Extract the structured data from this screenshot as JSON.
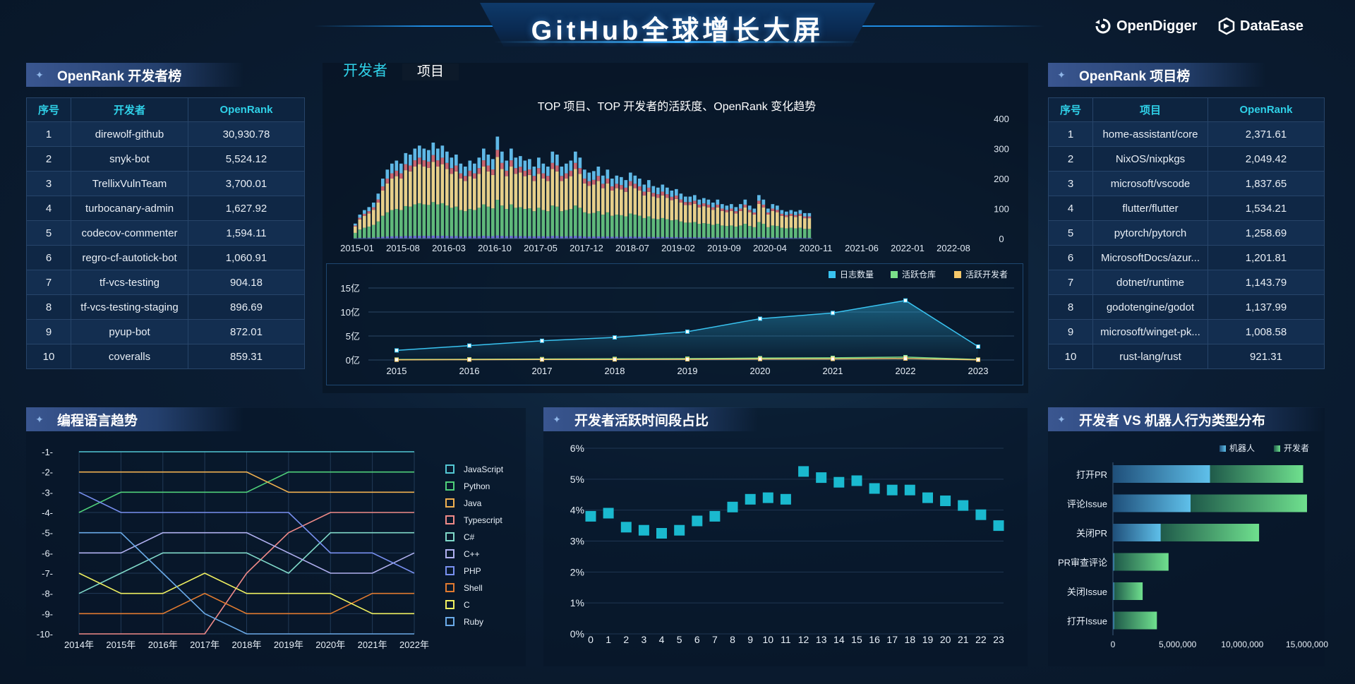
{
  "header": {
    "title": "GitHub全球增长大屏"
  },
  "logos": {
    "opendigger": "OpenDigger",
    "dataease": "DataEase"
  },
  "dev_rank": {
    "title": "OpenRank 开发者榜",
    "columns": [
      "序号",
      "开发者",
      "OpenRank"
    ],
    "rows": [
      [
        "1",
        "direwolf-github",
        "30,930.78"
      ],
      [
        "2",
        "snyk-bot",
        "5,524.12"
      ],
      [
        "3",
        "TrellixVulnTeam",
        "3,700.01"
      ],
      [
        "4",
        "turbocanary-admin",
        "1,627.92"
      ],
      [
        "5",
        "codecov-commenter",
        "1,594.11"
      ],
      [
        "6",
        "regro-cf-autotick-bot",
        "1,060.91"
      ],
      [
        "7",
        "tf-vcs-testing",
        "904.18"
      ],
      [
        "8",
        "tf-vcs-testing-staging",
        "896.69"
      ],
      [
        "9",
        "pyup-bot",
        "872.01"
      ],
      [
        "10",
        "coveralls",
        "859.31"
      ]
    ]
  },
  "repo_rank": {
    "title": "OpenRank 项目榜",
    "columns": [
      "序号",
      "项目",
      "OpenRank"
    ],
    "rows": [
      [
        "1",
        "home-assistant/core",
        "2,371.61"
      ],
      [
        "2",
        "NixOS/nixpkgs",
        "2,049.42"
      ],
      [
        "3",
        "microsoft/vscode",
        "1,837.65"
      ],
      [
        "4",
        "flutter/flutter",
        "1,534.21"
      ],
      [
        "5",
        "pytorch/pytorch",
        "1,258.69"
      ],
      [
        "6",
        "MicrosoftDocs/azur...",
        "1,201.81"
      ],
      [
        "7",
        "dotnet/runtime",
        "1,143.79"
      ],
      [
        "8",
        "godotengine/godot",
        "1,137.99"
      ],
      [
        "9",
        "microsoft/winget-pk...",
        "1,008.58"
      ],
      [
        "10",
        "rust-lang/rust",
        "921.31"
      ]
    ]
  },
  "center_tabs": {
    "active": "开发者",
    "inactive": "项目"
  },
  "colors": {
    "cyan": "#2fd1e8",
    "bar_blue": "#5fb8e6",
    "bar_red": "#c8646e",
    "bar_yellow": "#e6cf8a",
    "bar_green": "#5fb87a",
    "bar_purple": "#6c6cd4",
    "line_cyan": "#39c3f0",
    "legend_green": "#7be08a",
    "legend_yellow": "#f5c86a"
  },
  "chart_data": [
    {
      "type": "bar",
      "title": "TOP 项目、TOP 开发者的活跃度、OpenRank 变化趋势",
      "x_tick_labels": [
        "2015-01",
        "2015-08",
        "2016-03",
        "2016-10",
        "2017-05",
        "2017-12",
        "2018-07",
        "2019-02",
        "2019-09",
        "2020-04",
        "2020-11",
        "2021-06",
        "2022-01",
        "2022-08"
      ],
      "ylim": [
        0,
        400
      ],
      "y_ticks": [
        "400",
        "300",
        "200",
        "100",
        "0"
      ],
      "stacked": true,
      "totals": [
        50,
        80,
        95,
        105,
        120,
        150,
        200,
        230,
        250,
        260,
        250,
        285,
        280,
        300,
        310,
        300,
        295,
        320,
        300,
        310,
        290,
        270,
        280,
        250,
        240,
        260,
        250,
        270,
        300,
        280,
        265,
        340,
        290,
        260,
        300,
        270,
        275,
        260,
        265,
        240,
        270,
        250,
        240,
        290,
        280,
        240,
        250,
        260,
        290,
        270,
        230,
        220,
        225,
        240,
        210,
        230,
        200,
        210,
        205,
        195,
        220,
        210,
        200,
        180,
        195,
        175,
        170,
        180,
        170,
        160,
        165,
        150,
        140,
        140,
        145,
        130,
        135,
        130,
        120,
        130,
        115,
        110,
        115,
        105,
        115,
        130,
        110,
        100,
        145,
        130,
        100,
        115,
        110,
        95,
        90,
        95,
        90,
        95,
        85,
        85
      ],
      "x_display": "monthly",
      "series_colors": [
        "#5fb87a",
        "#e6cf8a",
        "#c8646e",
        "#5fb8e6"
      ]
    },
    {
      "type": "line",
      "categories": [
        "2015",
        "2016",
        "2017",
        "2018",
        "2019",
        "2020",
        "2021",
        "2022",
        "2023"
      ],
      "y_ticks": [
        "15亿",
        "10亿",
        "5亿",
        "0亿"
      ],
      "ylim": [
        0,
        15
      ],
      "legend": [
        "日志数量",
        "活跃仓库",
        "活跃开发者"
      ],
      "series": [
        {
          "name": "日志数量",
          "values": [
            2.0,
            3.0,
            4.0,
            4.7,
            5.9,
            8.6,
            9.8,
            12.4,
            2.8
          ]
        },
        {
          "name": "活跃仓库",
          "values": [
            0.1,
            0.15,
            0.2,
            0.25,
            0.3,
            0.4,
            0.45,
            0.6,
            0.1
          ]
        },
        {
          "name": "活跃开发者",
          "values": [
            0.05,
            0.08,
            0.1,
            0.12,
            0.15,
            0.2,
            0.22,
            0.3,
            0.05
          ]
        }
      ]
    },
    {
      "type": "line",
      "title": "编程语言趋势",
      "categories": [
        "2014年",
        "2015年",
        "2016年",
        "2017年",
        "2018年",
        "2019年",
        "2020年",
        "2021年",
        "2022年"
      ],
      "y_ticks": [
        "-1-",
        "-2-",
        "-3-",
        "-4-",
        "-5-",
        "-6-",
        "-7-",
        "-8-",
        "-9-",
        "-10-"
      ],
      "ylim": [
        -10,
        -1
      ],
      "series": [
        {
          "name": "JavaScript",
          "color": "#53c8d4",
          "values": [
            -1,
            -1,
            -1,
            -1,
            -1,
            -1,
            -1,
            -1,
            -1
          ]
        },
        {
          "name": "Python",
          "color": "#4fd07a",
          "values": [
            -4,
            -3,
            -3,
            -3,
            -3,
            -2,
            -2,
            -2,
            -2
          ]
        },
        {
          "name": "Java",
          "color": "#f0b050",
          "values": [
            -2,
            -2,
            -2,
            -2,
            -2,
            -3,
            -3,
            -3,
            -3
          ]
        },
        {
          "name": "Typescript",
          "color": "#f08a88",
          "values": [
            -10,
            -10,
            -10,
            -10,
            -7,
            -5,
            -4,
            -4,
            -4
          ]
        },
        {
          "name": "C#",
          "color": "#7fd8c8",
          "values": [
            -8,
            -7,
            -6,
            -6,
            -6,
            -7,
            -5,
            -5,
            -5
          ]
        },
        {
          "name": "C++",
          "color": "#b0b0f0",
          "values": [
            -6,
            -6,
            -5,
            -5,
            -5,
            -6,
            -7,
            -7,
            -6
          ]
        },
        {
          "name": "PHP",
          "color": "#7890f0",
          "values": [
            -3,
            -4,
            -4,
            -4,
            -4,
            -4,
            -6,
            -6,
            -7
          ]
        },
        {
          "name": "Shell",
          "color": "#e07a30",
          "values": [
            -9,
            -9,
            -9,
            -8,
            -9,
            -9,
            -9,
            -8,
            -8
          ]
        },
        {
          "name": "C",
          "color": "#f0f060",
          "values": [
            -7,
            -8,
            -8,
            -7,
            -8,
            -8,
            -8,
            -9,
            -9
          ]
        },
        {
          "name": "Ruby",
          "color": "#6aaae8",
          "values": [
            -5,
            -5,
            -7,
            -9,
            -10,
            -10,
            -10,
            -10,
            -10
          ]
        }
      ]
    },
    {
      "type": "scatter",
      "title": "开发者活跃时间段占比",
      "x": [
        "0",
        "1",
        "2",
        "3",
        "4",
        "5",
        "6",
        "7",
        "8",
        "9",
        "10",
        "11",
        "12",
        "13",
        "14",
        "15",
        "16",
        "17",
        "18",
        "19",
        "20",
        "21",
        "22",
        "23"
      ],
      "y_ticks": [
        "6%",
        "5%",
        "4%",
        "3%",
        "2%",
        "1%",
        "0%"
      ],
      "ylim": [
        0,
        6
      ],
      "values": [
        3.8,
        3.9,
        3.45,
        3.35,
        3.25,
        3.35,
        3.65,
        3.8,
        4.1,
        4.35,
        4.4,
        4.35,
        5.25,
        5.05,
        4.9,
        4.95,
        4.7,
        4.65,
        4.65,
        4.4,
        4.3,
        4.15,
        3.85,
        3.5
      ]
    },
    {
      "type": "bar",
      "title": "开发者 VS 机器人行为类型分布",
      "orientation": "horizontal",
      "stacked": true,
      "categories": [
        "打开PR",
        "评论Issue",
        "关闭PR",
        "PR审查评论",
        "关闭Issue",
        "打开Issue"
      ],
      "legend": [
        "机器人",
        "开发者"
      ],
      "x_ticks": [
        "0",
        "5,000,000",
        "10,000,000",
        "15,000,000"
      ],
      "xlim": [
        0,
        15000000
      ],
      "series": [
        {
          "name": "机器人",
          "values": [
            7500000,
            6000000,
            3700000,
            100000,
            100000,
            100000
          ]
        },
        {
          "name": "开发者",
          "values": [
            7200000,
            9000000,
            7600000,
            4200000,
            2200000,
            3300000
          ]
        }
      ]
    }
  ]
}
